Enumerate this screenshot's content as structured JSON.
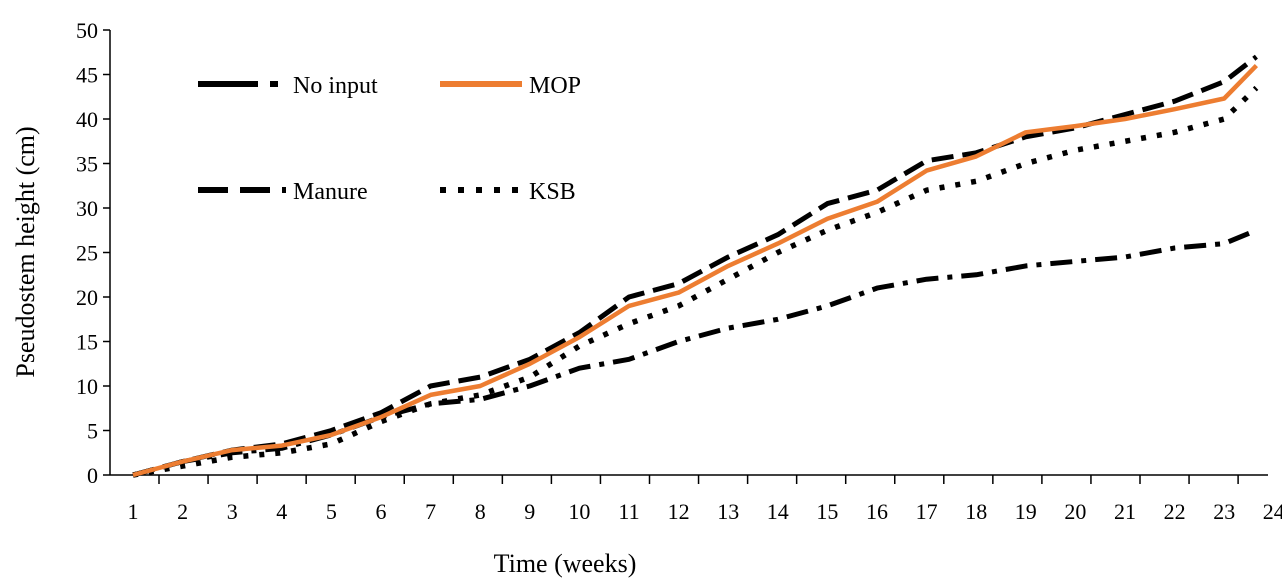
{
  "chart_data": {
    "type": "line",
    "xlabel": "Time (weeks)",
    "ylabel": "Pseudostem height (cm)",
    "ylim": [
      0,
      50
    ],
    "yticks": [
      0,
      5,
      10,
      15,
      20,
      25,
      30,
      35,
      40,
      45,
      50
    ],
    "x_tick_labels": [
      "1",
      "2",
      "3",
      "4",
      "5",
      "6",
      "7",
      "8",
      "9",
      "10",
      "11",
      "12",
      "13",
      "14",
      "15",
      "16",
      "17",
      "18",
      "19",
      "20",
      "21",
      "22",
      "23",
      "24"
    ],
    "grid": false,
    "legend_position": "top-left",
    "series": [
      {
        "name": "No input",
        "color": "#000000",
        "style": "dash-dot",
        "x": [
          0,
          1,
          2,
          3,
          4,
          5,
          6,
          7,
          8,
          9,
          10,
          11,
          12,
          13,
          14,
          15,
          16,
          17,
          18,
          19,
          20,
          21,
          22,
          22.65
        ],
        "values": [
          0,
          1.5,
          2.5,
          3,
          4.5,
          6.5,
          8,
          8.5,
          10,
          12,
          13,
          15,
          16.5,
          17.5,
          19,
          21,
          22,
          22.5,
          23.5,
          24,
          24.5,
          25.5,
          26,
          27.5
        ]
      },
      {
        "name": "MOP",
        "color": "#ED7D31",
        "style": "solid",
        "x": [
          0,
          1,
          2,
          3,
          4,
          5,
          6,
          7,
          8,
          9,
          10,
          11,
          12,
          13,
          14,
          15,
          16,
          17,
          18,
          19,
          20,
          21,
          22,
          22.65
        ],
        "values": [
          0,
          1.5,
          2.8,
          3.3,
          4.5,
          6.5,
          9,
          10,
          12.5,
          15.5,
          19,
          20.5,
          23.5,
          26,
          28.8,
          30.7,
          34.2,
          35.8,
          38.5,
          39.2,
          40,
          41.1,
          42.3,
          46
        ]
      },
      {
        "name": "Manure",
        "color": "#000000",
        "style": "dash",
        "x": [
          0,
          1,
          2,
          3,
          4,
          5,
          6,
          7,
          8,
          9,
          10,
          11,
          12,
          13,
          14,
          15,
          16,
          17,
          18,
          19,
          20,
          21,
          22,
          22.65
        ],
        "values": [
          0,
          1.5,
          2.8,
          3.5,
          5,
          7,
          10,
          11,
          13,
          16,
          20,
          21.5,
          24.5,
          27,
          30.5,
          32,
          35.3,
          36.2,
          38,
          39,
          40.5,
          42,
          44.2,
          47
        ]
      },
      {
        "name": "KSB",
        "color": "#000000",
        "style": "dot",
        "x": [
          0,
          1,
          2,
          3,
          4,
          5,
          6,
          7,
          8,
          9,
          10,
          11,
          12,
          13,
          14,
          15,
          16,
          17,
          18,
          19,
          20,
          21,
          22,
          22.65
        ],
        "values": [
          0,
          1,
          2,
          2.5,
          3.5,
          6,
          8,
          9,
          11,
          14.5,
          17,
          19,
          22,
          25,
          27.5,
          29.5,
          32,
          33,
          35,
          36.5,
          37.5,
          38.5,
          40,
          43.5
        ]
      }
    ]
  }
}
